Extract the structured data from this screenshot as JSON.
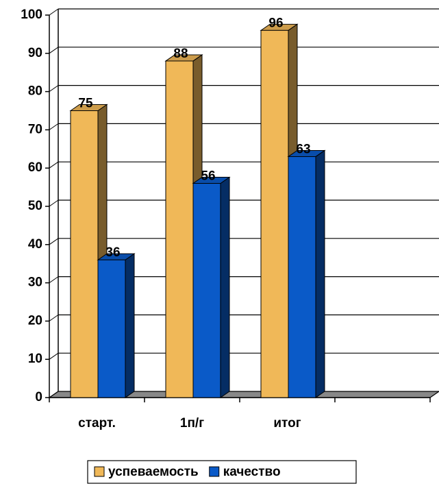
{
  "chart_data": {
    "type": "bar3d",
    "categories": [
      "старт.",
      "1п/г",
      "итог",
      null
    ],
    "series": [
      {
        "name": "успеваемость",
        "color": "#F0B858",
        "values": [
          75,
          88,
          96,
          null
        ]
      },
      {
        "name": "качество",
        "color": "#0A5AC8",
        "values": [
          36,
          56,
          63,
          null
        ]
      }
    ],
    "ylim": [
      0,
      100
    ],
    "yticks": [
      0,
      10,
      20,
      30,
      40,
      50,
      60,
      70,
      80,
      90,
      100
    ],
    "grid": true,
    "legend": "bottom"
  }
}
